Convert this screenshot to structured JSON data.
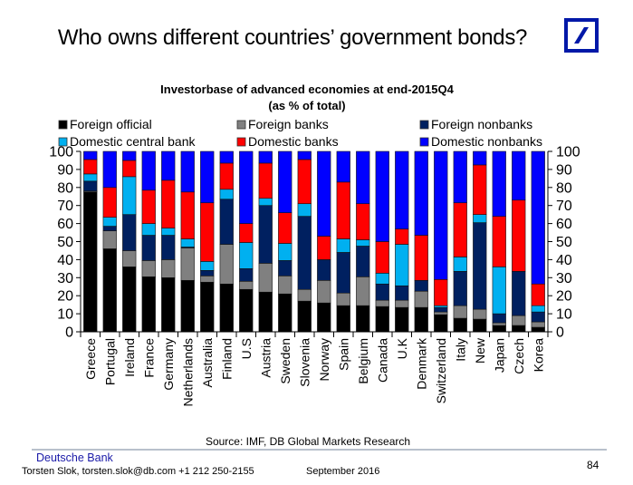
{
  "slide": {
    "title": "Who owns different countries’ government bonds?",
    "logo_name": "Deutsche Bank logo",
    "footer": {
      "company": "Deutsche Bank",
      "author": "Torsten Slok, torsten.slok@db.com +1 212 250-2155",
      "date": "September 2016",
      "page": "84"
    }
  },
  "chart_data": {
    "type": "bar",
    "stacked": true,
    "title": "Investorbase of advanced economies at end-2015Q4",
    "subtitle": "(as % of total)",
    "source": "Source: IMF, DB Global Markets Research",
    "xlabel": "",
    "ylabel": "",
    "ylim": [
      0,
      100
    ],
    "yticks": [
      "0",
      "10",
      "20",
      "30",
      "40",
      "50",
      "60",
      "70",
      "80",
      "90",
      "100"
    ],
    "legend_position": "top",
    "categories": [
      "Greece",
      "Portugal",
      "Ireland",
      "France",
      "Germany",
      "Netherlands",
      "Australia",
      "Finland",
      "U.S",
      "Austria",
      "Sweden",
      "Slovenia",
      "Norway",
      "Spain",
      "Belgium",
      "Canada",
      "U.K",
      "Denmark",
      "Switzerland",
      "Italy",
      "New",
      "Japan",
      "Czech",
      "Korea"
    ],
    "series": [
      {
        "name": "Foreign official",
        "color": "#000000",
        "values": [
          77.5,
          46,
          36,
          30.5,
          30,
          28.5,
          27.5,
          26.5,
          23.5,
          22,
          21,
          17,
          16,
          14.5,
          14.5,
          14,
          13.5,
          13.5,
          9.5,
          7.5,
          7,
          3.5,
          3.5,
          2.5
        ]
      },
      {
        "name": "Foreign banks",
        "color": "#808080",
        "values": [
          0.5,
          10,
          9,
          9,
          10,
          18,
          3.5,
          22,
          4.5,
          16,
          10,
          6.5,
          12.5,
          7,
          16,
          3.5,
          4,
          9,
          1.5,
          7,
          5.5,
          1.5,
          5.5,
          3
        ]
      },
      {
        "name": "Foreign nonbanks",
        "color": "#002060",
        "values": [
          5.5,
          2.5,
          20,
          14,
          13.5,
          0.5,
          3,
          25,
          7,
          32,
          8.5,
          40.5,
          11.5,
          22.5,
          17,
          9,
          8,
          6,
          2.5,
          19,
          48,
          5,
          24.5,
          5.5
        ]
      },
      {
        "name": "Domestic central bank",
        "color": "#00b0f0",
        "values": [
          4,
          5,
          21,
          6.5,
          4,
          4.5,
          5,
          5.5,
          14.5,
          4,
          9.5,
          7,
          0,
          7.5,
          3.5,
          6,
          23,
          0,
          1,
          8,
          4.5,
          26,
          0,
          3.5
        ]
      },
      {
        "name": "Domestic banks",
        "color": "#ff0000",
        "values": [
          8,
          16.5,
          9,
          18.5,
          26.5,
          26,
          32.5,
          14.5,
          10.5,
          19.5,
          17,
          24.5,
          13,
          31.5,
          20,
          17.5,
          8.5,
          25,
          14.5,
          30,
          27.5,
          28,
          39.5,
          12
        ]
      },
      {
        "name": "Domestic nonbanks",
        "color": "#0000ff",
        "values": [
          4.5,
          20,
          5,
          21.5,
          16,
          22.5,
          28.5,
          6.5,
          40,
          6.5,
          34,
          4.5,
          47,
          17,
          29,
          50,
          43,
          46.5,
          71,
          28.5,
          7.5,
          36,
          27,
          73.5
        ]
      }
    ]
  }
}
